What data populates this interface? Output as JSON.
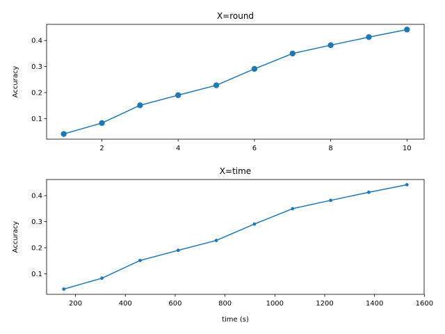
{
  "colors": {
    "series": "#1f77b4",
    "axis": "#000000",
    "background": "#ffffff"
  },
  "chart_data": [
    {
      "type": "line",
      "title": "X=round",
      "xlabel": "",
      "ylabel": "Accuracy",
      "marker": "circle-large",
      "grid": false,
      "x": [
        1,
        2,
        3,
        4,
        5,
        6,
        7,
        8,
        9,
        10
      ],
      "y": [
        0.041,
        0.083,
        0.151,
        0.19,
        0.228,
        0.291,
        0.35,
        0.382,
        0.413,
        0.442
      ],
      "xlim": [
        0.55,
        10.45
      ],
      "ylim": [
        0.021,
        0.462
      ],
      "xticks": [
        2,
        4,
        6,
        8,
        10
      ],
      "xticklabels": [
        "2",
        "4",
        "6",
        "8",
        "10"
      ],
      "yticks": [
        0.1,
        0.2,
        0.3,
        0.4
      ],
      "yticklabels": [
        "0.1",
        "0.2",
        "0.3",
        "0.4"
      ]
    },
    {
      "type": "line",
      "title": "X=time",
      "xlabel": "time (s)",
      "ylabel": "Accuracy",
      "marker": "circle-small",
      "grid": false,
      "x": [
        153,
        306,
        459,
        612,
        765,
        918,
        1071,
        1224,
        1377,
        1530
      ],
      "y": [
        0.041,
        0.083,
        0.151,
        0.19,
        0.228,
        0.291,
        0.35,
        0.382,
        0.413,
        0.442
      ],
      "xlim": [
        84,
        1599
      ],
      "ylim": [
        0.021,
        0.462
      ],
      "xticks": [
        200,
        400,
        600,
        800,
        1000,
        1200,
        1400,
        1600
      ],
      "xticklabels": [
        "200",
        "400",
        "600",
        "800",
        "1000",
        "1200",
        "1400",
        "1600"
      ],
      "yticks": [
        0.1,
        0.2,
        0.3,
        0.4
      ],
      "yticklabels": [
        "0.1",
        "0.2",
        "0.3",
        "0.4"
      ]
    }
  ]
}
